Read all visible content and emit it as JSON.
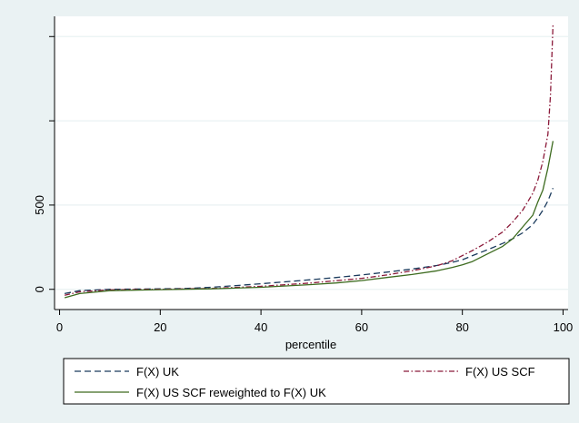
{
  "chart_data": {
    "type": "line",
    "title": "",
    "xlabel": "percentile",
    "ylabel": "",
    "xlim": [
      -1,
      101
    ],
    "ylim": [
      -120,
      1620
    ],
    "x_ticks": [
      0,
      20,
      40,
      60,
      80,
      100
    ],
    "x_tick_labels": [
      "0",
      "20",
      "40",
      "60",
      "80",
      "100"
    ],
    "y_ticks": [
      0,
      500,
      1000,
      1500
    ],
    "y_tick_labels": [
      "0",
      "500",
      "",
      ""
    ],
    "grid": "horizontal",
    "legend_position": "bottom",
    "colors": {
      "background": "#eaf2f3",
      "plot_area": "#ffffff",
      "uk": "#1a3a5c",
      "us_scf": "#8b1a3a",
      "us_reweighted": "#3d6b1f"
    },
    "series": [
      {
        "name": "F(X) UK",
        "style": "dashed",
        "x": [
          1,
          4,
          10,
          20,
          25,
          30,
          35,
          40,
          45,
          50,
          55,
          60,
          65,
          70,
          75,
          78,
          80,
          82,
          85,
          88,
          90,
          92,
          94,
          95,
          96,
          97,
          98
        ],
        "y": [
          -25,
          -8,
          0,
          3,
          5,
          12,
          22,
          33,
          45,
          57,
          70,
          85,
          102,
          120,
          142,
          160,
          175,
          200,
          235,
          272,
          300,
          335,
          385,
          425,
          470,
          525,
          600
        ]
      },
      {
        "name": "F(X) US SCF",
        "style": "dash-dot",
        "x": [
          1,
          4,
          10,
          20,
          30,
          40,
          50,
          60,
          65,
          70,
          75,
          78,
          80,
          82,
          85,
          88,
          90,
          92,
          94,
          95,
          96,
          97,
          97.5,
          98
        ],
        "y": [
          -35,
          -15,
          -3,
          0,
          5,
          18,
          38,
          65,
          85,
          110,
          140,
          170,
          200,
          230,
          280,
          340,
          400,
          470,
          570,
          650,
          760,
          920,
          1150,
          1570
        ]
      },
      {
        "name": "F(X) US SCF reweighted to F(X) UK",
        "style": "solid",
        "x": [
          1,
          4,
          10,
          20,
          30,
          40,
          50,
          55,
          60,
          65,
          70,
          75,
          78,
          80,
          82,
          85,
          88,
          90,
          92,
          94,
          95,
          96,
          97,
          98
        ],
        "y": [
          -50,
          -25,
          -8,
          -2,
          3,
          12,
          28,
          38,
          52,
          70,
          88,
          110,
          130,
          145,
          165,
          210,
          255,
          300,
          370,
          440,
          520,
          590,
          720,
          880
        ]
      }
    ]
  }
}
